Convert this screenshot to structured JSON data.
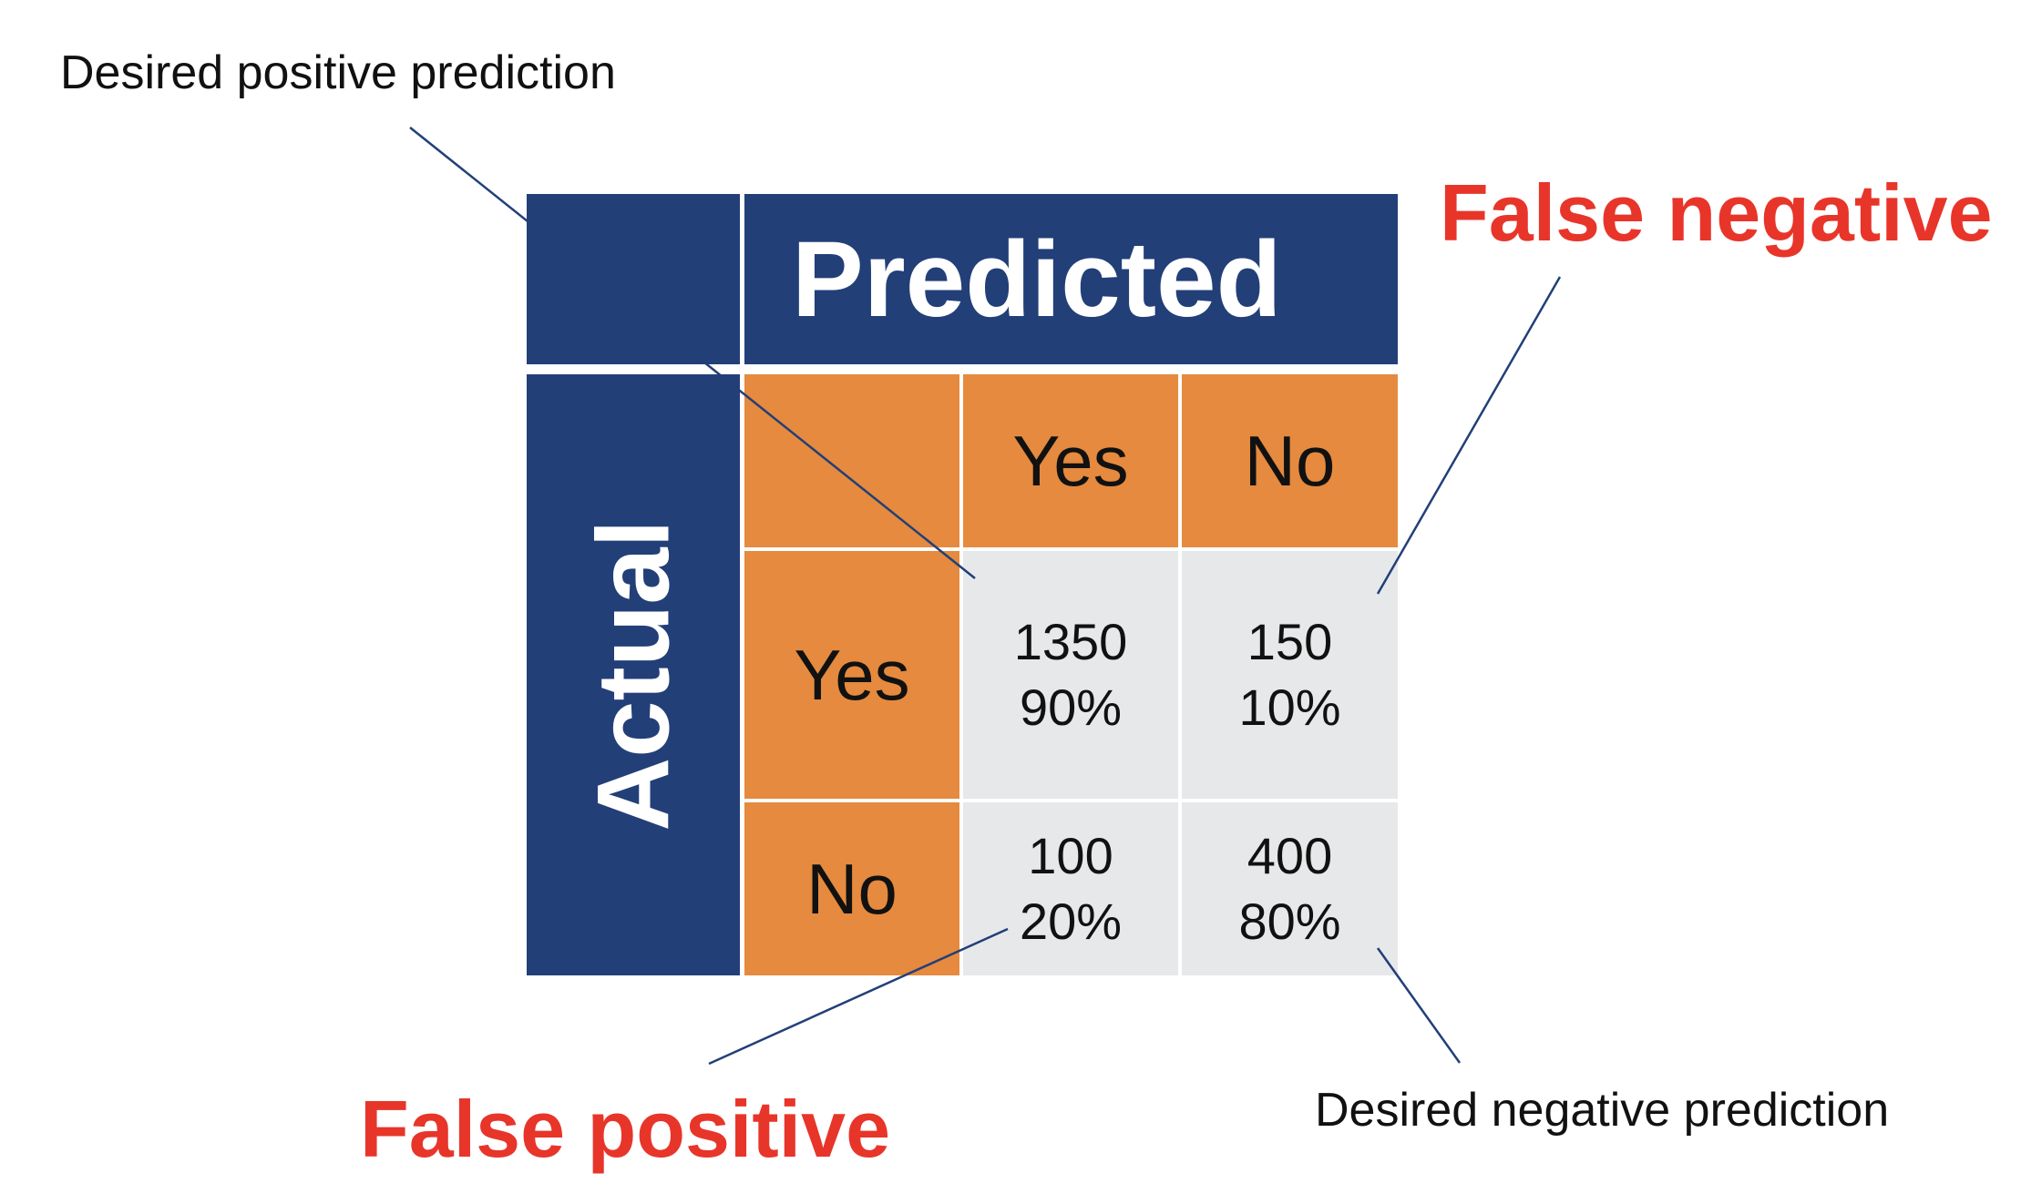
{
  "annotations": {
    "desired_positive": "Desired positive prediction",
    "desired_negative": "Desired negative prediction",
    "false_negative": "False negative",
    "false_positive": "False positive"
  },
  "matrix": {
    "predicted_header": "Predicted",
    "actual_header": "Actual",
    "predicted_labels": [
      "Yes",
      "No"
    ],
    "actual_labels": [
      "Yes",
      "No"
    ],
    "cells": [
      [
        {
          "count": "1350",
          "percent": "90%"
        },
        {
          "count": "150",
          "percent": "10%"
        }
      ],
      [
        {
          "count": "100",
          "percent": "20%"
        },
        {
          "count": "400",
          "percent": "80%"
        }
      ]
    ]
  },
  "colors": {
    "header_navy": "#223f78",
    "label_orange": "#e58a3e",
    "value_grey": "#e7e8ea",
    "callout_red": "#e8352a",
    "leader_line": "#223f78"
  }
}
